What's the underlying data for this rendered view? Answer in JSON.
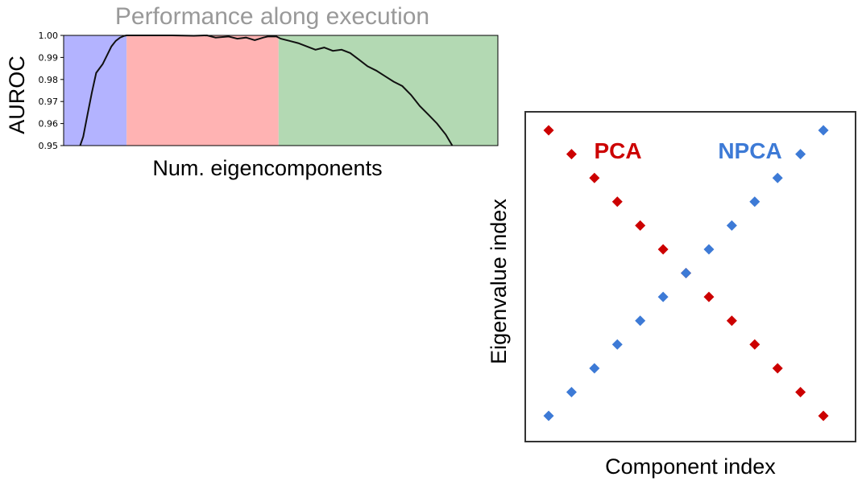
{
  "chart_data": [
    {
      "type": "line",
      "title": "Performance along execution",
      "xlabel": "Num. eigencomponents",
      "ylabel": "AUROC",
      "ylim": [
        0.95,
        1.0
      ],
      "xlim": [
        0,
        100
      ],
      "yticks": [
        "0.95",
        "0.96",
        "0.97",
        "0.98",
        "0.99",
        "1.00"
      ],
      "regions": [
        {
          "x0": 0,
          "x1": 14.5,
          "color": "#b3b3ff"
        },
        {
          "x0": 14.5,
          "x1": 49.5,
          "color": "#ffb3b3"
        },
        {
          "x0": 49.5,
          "x1": 100,
          "color": "#b3d9b3"
        }
      ],
      "line_color": "#111111",
      "series": [
        {
          "x": [
            3.8,
            4.5,
            5.5,
            6.5,
            7.5,
            9,
            10,
            11,
            12,
            13,
            14,
            14.5,
            17,
            20,
            25,
            30,
            33,
            35,
            38,
            40,
            42,
            44,
            46,
            47,
            49,
            50,
            52,
            54,
            56,
            58,
            60,
            62,
            64,
            66,
            68,
            70,
            72,
            74,
            76,
            78,
            80,
            82,
            84,
            86,
            88,
            89.5
          ],
          "y": [
            0.95,
            0.954,
            0.964,
            0.974,
            0.983,
            0.987,
            0.991,
            0.995,
            0.9975,
            0.999,
            0.9998,
            1.0,
            1.0,
            1.0,
            1.0,
            0.9998,
            1.0,
            0.999,
            0.9995,
            0.9985,
            0.999,
            0.9978,
            0.999,
            0.9995,
            0.9995,
            0.9985,
            0.9975,
            0.9965,
            0.995,
            0.9935,
            0.9945,
            0.993,
            0.9935,
            0.992,
            0.989,
            0.986,
            0.984,
            0.9815,
            0.979,
            0.977,
            0.973,
            0.968,
            0.964,
            0.96,
            0.955,
            0.95
          ]
        }
      ]
    },
    {
      "type": "scatter",
      "xlabel": "Component index",
      "ylabel": "Eigenvalue index",
      "xlim": [
        0,
        14
      ],
      "ylim": [
        0,
        14
      ],
      "grid": false,
      "series": [
        {
          "name": "PCA",
          "color": "#cc0000",
          "x": [
            1,
            2,
            3,
            4,
            5,
            6,
            7,
            8,
            9,
            10,
            11,
            12,
            13
          ],
          "y": [
            13,
            12,
            11,
            10,
            9,
            8,
            7,
            6,
            5,
            4,
            3,
            2,
            1
          ]
        },
        {
          "name": "NPCA",
          "color": "#3d7ad6",
          "x": [
            1,
            2,
            3,
            4,
            5,
            6,
            7,
            8,
            9,
            10,
            11,
            12,
            13
          ],
          "y": [
            1,
            2,
            3,
            4,
            5,
            6,
            7,
            8,
            9,
            10,
            11,
            12,
            13
          ]
        }
      ]
    }
  ]
}
